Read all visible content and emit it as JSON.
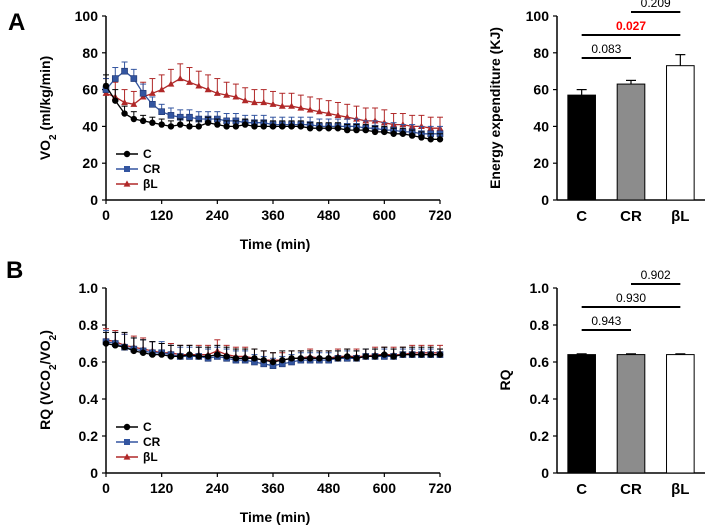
{
  "panels": {
    "a": "A",
    "b": "B"
  },
  "colors": {
    "C": "#000000",
    "CR": "#3355a0",
    "bL": "#b02828",
    "bar_C": "#000000",
    "bar_CR": "#8c8c8c",
    "bar_bL": "#ffffff",
    "sig": "#ff0000"
  },
  "chart_data": [
    {
      "id": "A-line",
      "type": "line",
      "title": "",
      "xlabel": "Time (min)",
      "ylabel_main": "VO",
      "ylabel_sub": "2",
      "ylabel_tail": " (ml/kg/min)",
      "xlim": [
        0,
        720
      ],
      "ylim": [
        0,
        100
      ],
      "xticks": [
        "0",
        "120",
        "240",
        "360",
        "480",
        "600",
        "720"
      ],
      "yticks": [
        "0",
        "20",
        "40",
        "60",
        "80",
        "100"
      ],
      "legend": [
        "C",
        "CR",
        "βL"
      ],
      "x": [
        0,
        20,
        40,
        60,
        80,
        100,
        120,
        140,
        160,
        180,
        200,
        220,
        240,
        260,
        280,
        300,
        320,
        340,
        360,
        380,
        400,
        420,
        440,
        460,
        480,
        500,
        520,
        540,
        560,
        580,
        600,
        620,
        640,
        660,
        680,
        700,
        720
      ],
      "series": [
        {
          "name": "C",
          "values": [
            62,
            54,
            47,
            44,
            43,
            42,
            41,
            40,
            41,
            40,
            40,
            42,
            41,
            40,
            40,
            41,
            40,
            40,
            40,
            40,
            40,
            40,
            39,
            39,
            39,
            39,
            38,
            38,
            38,
            37,
            37,
            36,
            36,
            35,
            34,
            33,
            33
          ],
          "errors": [
            6,
            6,
            4,
            4,
            3,
            3,
            3,
            3,
            3,
            3,
            3,
            3,
            3,
            3,
            3,
            3,
            3,
            3,
            3,
            3,
            3,
            3,
            3,
            3,
            3,
            3,
            3,
            3,
            3,
            3,
            3,
            3,
            3,
            3,
            3,
            3,
            3
          ]
        },
        {
          "name": "CR",
          "values": [
            60,
            66,
            70,
            66,
            58,
            52,
            48,
            46,
            45,
            45,
            44,
            44,
            44,
            43,
            43,
            42,
            42,
            42,
            41,
            41,
            41,
            41,
            41,
            40,
            40,
            40,
            40,
            40,
            39,
            39,
            38,
            38,
            37,
            37,
            36,
            36,
            36
          ],
          "errors": [
            6,
            6,
            5,
            5,
            5,
            4,
            4,
            4,
            4,
            4,
            4,
            4,
            4,
            4,
            4,
            4,
            4,
            4,
            4,
            4,
            4,
            4,
            4,
            4,
            4,
            4,
            4,
            4,
            4,
            4,
            4,
            4,
            4,
            4,
            4,
            4,
            4
          ]
        },
        {
          "name": "βL",
          "values": [
            58,
            56,
            53,
            52,
            56,
            58,
            60,
            63,
            66,
            64,
            62,
            60,
            58,
            57,
            56,
            54,
            53,
            53,
            52,
            51,
            51,
            50,
            49,
            48,
            47,
            46,
            45,
            44,
            43,
            43,
            42,
            41,
            41,
            40,
            40,
            39,
            39
          ],
          "errors": [
            8,
            8,
            7,
            7,
            8,
            8,
            8,
            8,
            8,
            8,
            8,
            8,
            8,
            7,
            7,
            7,
            7,
            7,
            7,
            7,
            7,
            7,
            7,
            7,
            7,
            7,
            7,
            7,
            7,
            7,
            7,
            6,
            6,
            6,
            6,
            6,
            6
          ]
        }
      ]
    },
    {
      "id": "A-bar",
      "type": "bar",
      "title": "",
      "xlabel": "",
      "ylabel": "Energy expenditure (KJ)",
      "ylim": [
        0,
        100
      ],
      "yticks": [
        "0",
        "20",
        "40",
        "60",
        "80",
        "100"
      ],
      "categories": [
        "C",
        "CR",
        "βL"
      ],
      "values": [
        57,
        63,
        73
      ],
      "errors": [
        3,
        2,
        6
      ],
      "comparisons": [
        {
          "from": 1,
          "to": 2,
          "label": "0.209",
          "significant": false
        },
        {
          "from": 0,
          "to": 2,
          "label": "0.027",
          "significant": true
        },
        {
          "from": 0,
          "to": 1,
          "label": "0.083",
          "significant": false
        }
      ]
    },
    {
      "id": "B-line",
      "type": "line",
      "title": "",
      "xlabel": "Time (min)",
      "ylabel_main": "RQ (VCO",
      "ylabel_sub": "2",
      "ylabel_mid": "/VO",
      "ylabel_sub2": "2",
      "ylabel_tail": ")",
      "xlim": [
        0,
        720
      ],
      "ylim": [
        0,
        1.0
      ],
      "xticks": [
        "0",
        "120",
        "240",
        "360",
        "480",
        "600",
        "720"
      ],
      "yticks": [
        "0",
        "0.2",
        "0.4",
        "0.6",
        "0.8",
        "1.0"
      ],
      "legend": [
        "C",
        "CR",
        "βL"
      ],
      "x": [
        0,
        20,
        40,
        60,
        80,
        100,
        120,
        140,
        160,
        180,
        200,
        220,
        240,
        260,
        280,
        300,
        320,
        340,
        360,
        380,
        400,
        420,
        440,
        460,
        480,
        500,
        520,
        540,
        560,
        580,
        600,
        620,
        640,
        660,
        680,
        700,
        720
      ],
      "series": [
        {
          "name": "C",
          "values": [
            0.7,
            0.69,
            0.68,
            0.66,
            0.65,
            0.64,
            0.64,
            0.63,
            0.63,
            0.64,
            0.63,
            0.63,
            0.64,
            0.63,
            0.62,
            0.62,
            0.62,
            0.61,
            0.6,
            0.61,
            0.62,
            0.62,
            0.62,
            0.62,
            0.62,
            0.62,
            0.63,
            0.62,
            0.63,
            0.63,
            0.64,
            0.63,
            0.64,
            0.64,
            0.64,
            0.64,
            0.64
          ],
          "errors": [
            0.06,
            0.07,
            0.08,
            0.07,
            0.07,
            0.07,
            0.06,
            0.06,
            0.06,
            0.05,
            0.05,
            0.05,
            0.05,
            0.05,
            0.05,
            0.05,
            0.05,
            0.05,
            0.05,
            0.05,
            0.04,
            0.04,
            0.04,
            0.04,
            0.04,
            0.04,
            0.04,
            0.04,
            0.04,
            0.04,
            0.04,
            0.04,
            0.04,
            0.04,
            0.04,
            0.04,
            0.03
          ]
        },
        {
          "name": "CR",
          "values": [
            0.71,
            0.7,
            0.68,
            0.67,
            0.66,
            0.65,
            0.65,
            0.64,
            0.63,
            0.63,
            0.63,
            0.62,
            0.63,
            0.62,
            0.61,
            0.61,
            0.6,
            0.59,
            0.58,
            0.59,
            0.6,
            0.61,
            0.61,
            0.61,
            0.61,
            0.62,
            0.62,
            0.62,
            0.63,
            0.63,
            0.63,
            0.63,
            0.64,
            0.64,
            0.64,
            0.64,
            0.64
          ],
          "errors": [
            0.06,
            0.06,
            0.07,
            0.06,
            0.06,
            0.06,
            0.06,
            0.05,
            0.05,
            0.05,
            0.05,
            0.05,
            0.05,
            0.05,
            0.05,
            0.05,
            0.04,
            0.04,
            0.04,
            0.04,
            0.04,
            0.04,
            0.04,
            0.04,
            0.04,
            0.04,
            0.04,
            0.04,
            0.04,
            0.04,
            0.04,
            0.04,
            0.03,
            0.03,
            0.03,
            0.03,
            0.03
          ]
        },
        {
          "name": "βL",
          "values": [
            0.72,
            0.71,
            0.69,
            0.68,
            0.67,
            0.66,
            0.65,
            0.65,
            0.64,
            0.64,
            0.64,
            0.64,
            0.66,
            0.64,
            0.63,
            0.63,
            0.62,
            0.61,
            0.61,
            0.61,
            0.62,
            0.62,
            0.63,
            0.62,
            0.62,
            0.63,
            0.63,
            0.63,
            0.63,
            0.64,
            0.64,
            0.64,
            0.64,
            0.65,
            0.65,
            0.65,
            0.65
          ],
          "errors": [
            0.06,
            0.06,
            0.06,
            0.06,
            0.06,
            0.05,
            0.05,
            0.05,
            0.05,
            0.05,
            0.05,
            0.05,
            0.06,
            0.05,
            0.05,
            0.05,
            0.05,
            0.05,
            0.04,
            0.04,
            0.04,
            0.04,
            0.04,
            0.04,
            0.04,
            0.04,
            0.04,
            0.04,
            0.04,
            0.04,
            0.04,
            0.04,
            0.04,
            0.04,
            0.04,
            0.04,
            0.04
          ]
        }
      ]
    },
    {
      "id": "B-bar",
      "type": "bar",
      "title": "",
      "xlabel": "",
      "ylabel": "RQ",
      "ylim": [
        0,
        1.0
      ],
      "yticks": [
        "0",
        "0.2",
        "0.4",
        "0.6",
        "0.8",
        "1.0"
      ],
      "categories": [
        "C",
        "CR",
        "βL"
      ],
      "values": [
        0.64,
        0.64,
        0.64
      ],
      "errors": [
        0.004,
        0.004,
        0.004
      ],
      "comparisons": [
        {
          "from": 1,
          "to": 2,
          "label": "0.902",
          "significant": false
        },
        {
          "from": 0,
          "to": 2,
          "label": "0.930",
          "significant": false
        },
        {
          "from": 0,
          "to": 1,
          "label": "0.943",
          "significant": false
        }
      ]
    }
  ]
}
